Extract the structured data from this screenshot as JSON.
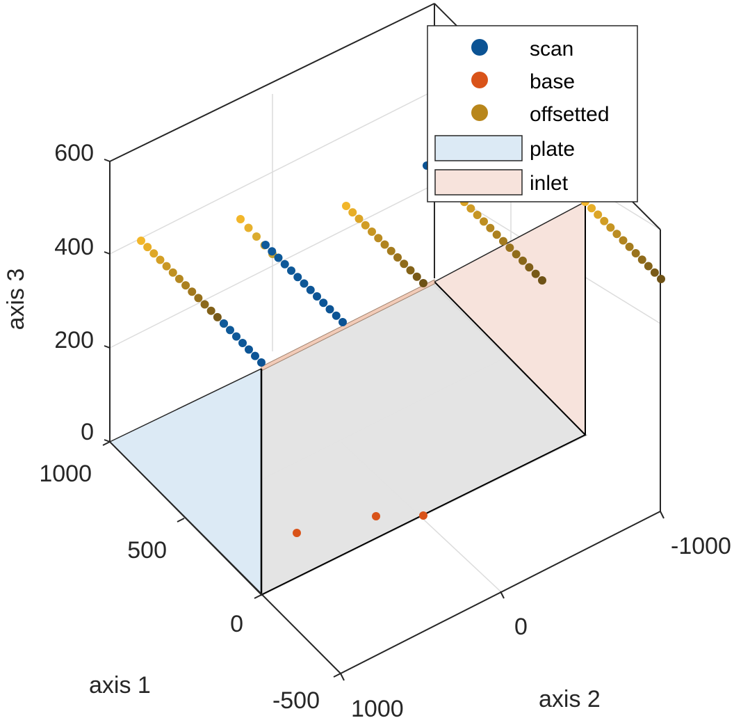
{
  "chart_data": {
    "type": "scatter",
    "view": "3d",
    "axes": {
      "x": {
        "label": "axis 1",
        "ticks": [
          "-500",
          "0",
          "500",
          "1000"
        ]
      },
      "y": {
        "label": "axis 2",
        "ticks": [
          "1000",
          "0",
          "-1000"
        ]
      },
      "z": {
        "label": "axis 3",
        "ticks": [
          "0",
          "200",
          "400",
          "600"
        ]
      }
    },
    "grid": true,
    "legend": {
      "position": "top-right",
      "entries": [
        {
          "label": "scan",
          "color": "#0b5394",
          "kind": "marker"
        },
        {
          "label": "base",
          "color": "#d95319",
          "kind": "marker"
        },
        {
          "label": "offsetted",
          "color": "#b8861b",
          "kind": "marker"
        },
        {
          "label": "plate",
          "color": "#dceaf5",
          "kind": "patch"
        },
        {
          "label": "inlet",
          "color": "#f7e3dc",
          "kind": "patch"
        }
      ]
    },
    "series": [
      {
        "name": "scan",
        "color": "#0b5394"
      },
      {
        "name": "base",
        "color": "#d95319"
      },
      {
        "name": "offsetted",
        "color_start": "#f2b62a",
        "color_end": "#6e5216"
      },
      {
        "name": "plate",
        "color": "#dceaf5"
      },
      {
        "name": "inlet",
        "color": "#f7e3dc"
      }
    ]
  }
}
